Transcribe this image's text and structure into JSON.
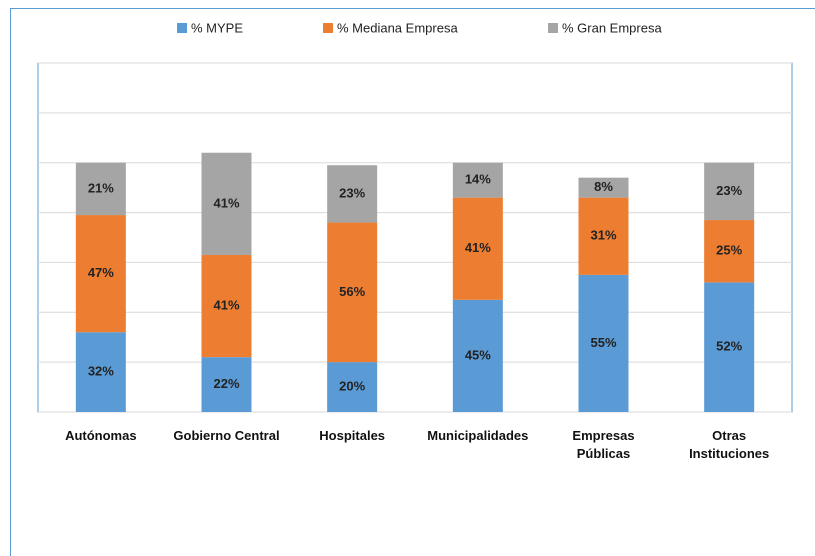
{
  "chart_data": {
    "type": "stacked_bar",
    "categories": [
      "Autónomas",
      "Gobierno Central",
      "Hospitales",
      "Municipalidades",
      "Empresas\nPúblicas",
      "Otras\nInstituciones"
    ],
    "series": [
      {
        "name": "% MYPE",
        "color": "#5b9bd5",
        "values": [
          32,
          22,
          20,
          45,
          55,
          52
        ],
        "value_labels": [
          "32%",
          "22%",
          "20%",
          "45%",
          "55%",
          "52%"
        ]
      },
      {
        "name": "% Mediana Empresa",
        "color": "#ed7d31",
        "values": [
          47,
          41,
          56,
          41,
          31,
          25
        ],
        "value_labels": [
          "47%",
          "41%",
          "56%",
          "41%",
          "31%",
          "25%"
        ]
      },
      {
        "name": "% Gran Empresa",
        "color": "#a5a5a5",
        "values": [
          21,
          41,
          23,
          14,
          8,
          23
        ],
        "value_labels": [
          "21%",
          "41%",
          "23%",
          "14%",
          "8%",
          "23%"
        ]
      }
    ],
    "ylim": [
      0,
      140
    ],
    "yticks": [
      0,
      20,
      40,
      60,
      80,
      100,
      120,
      140
    ],
    "grid": true,
    "legend": "top"
  }
}
